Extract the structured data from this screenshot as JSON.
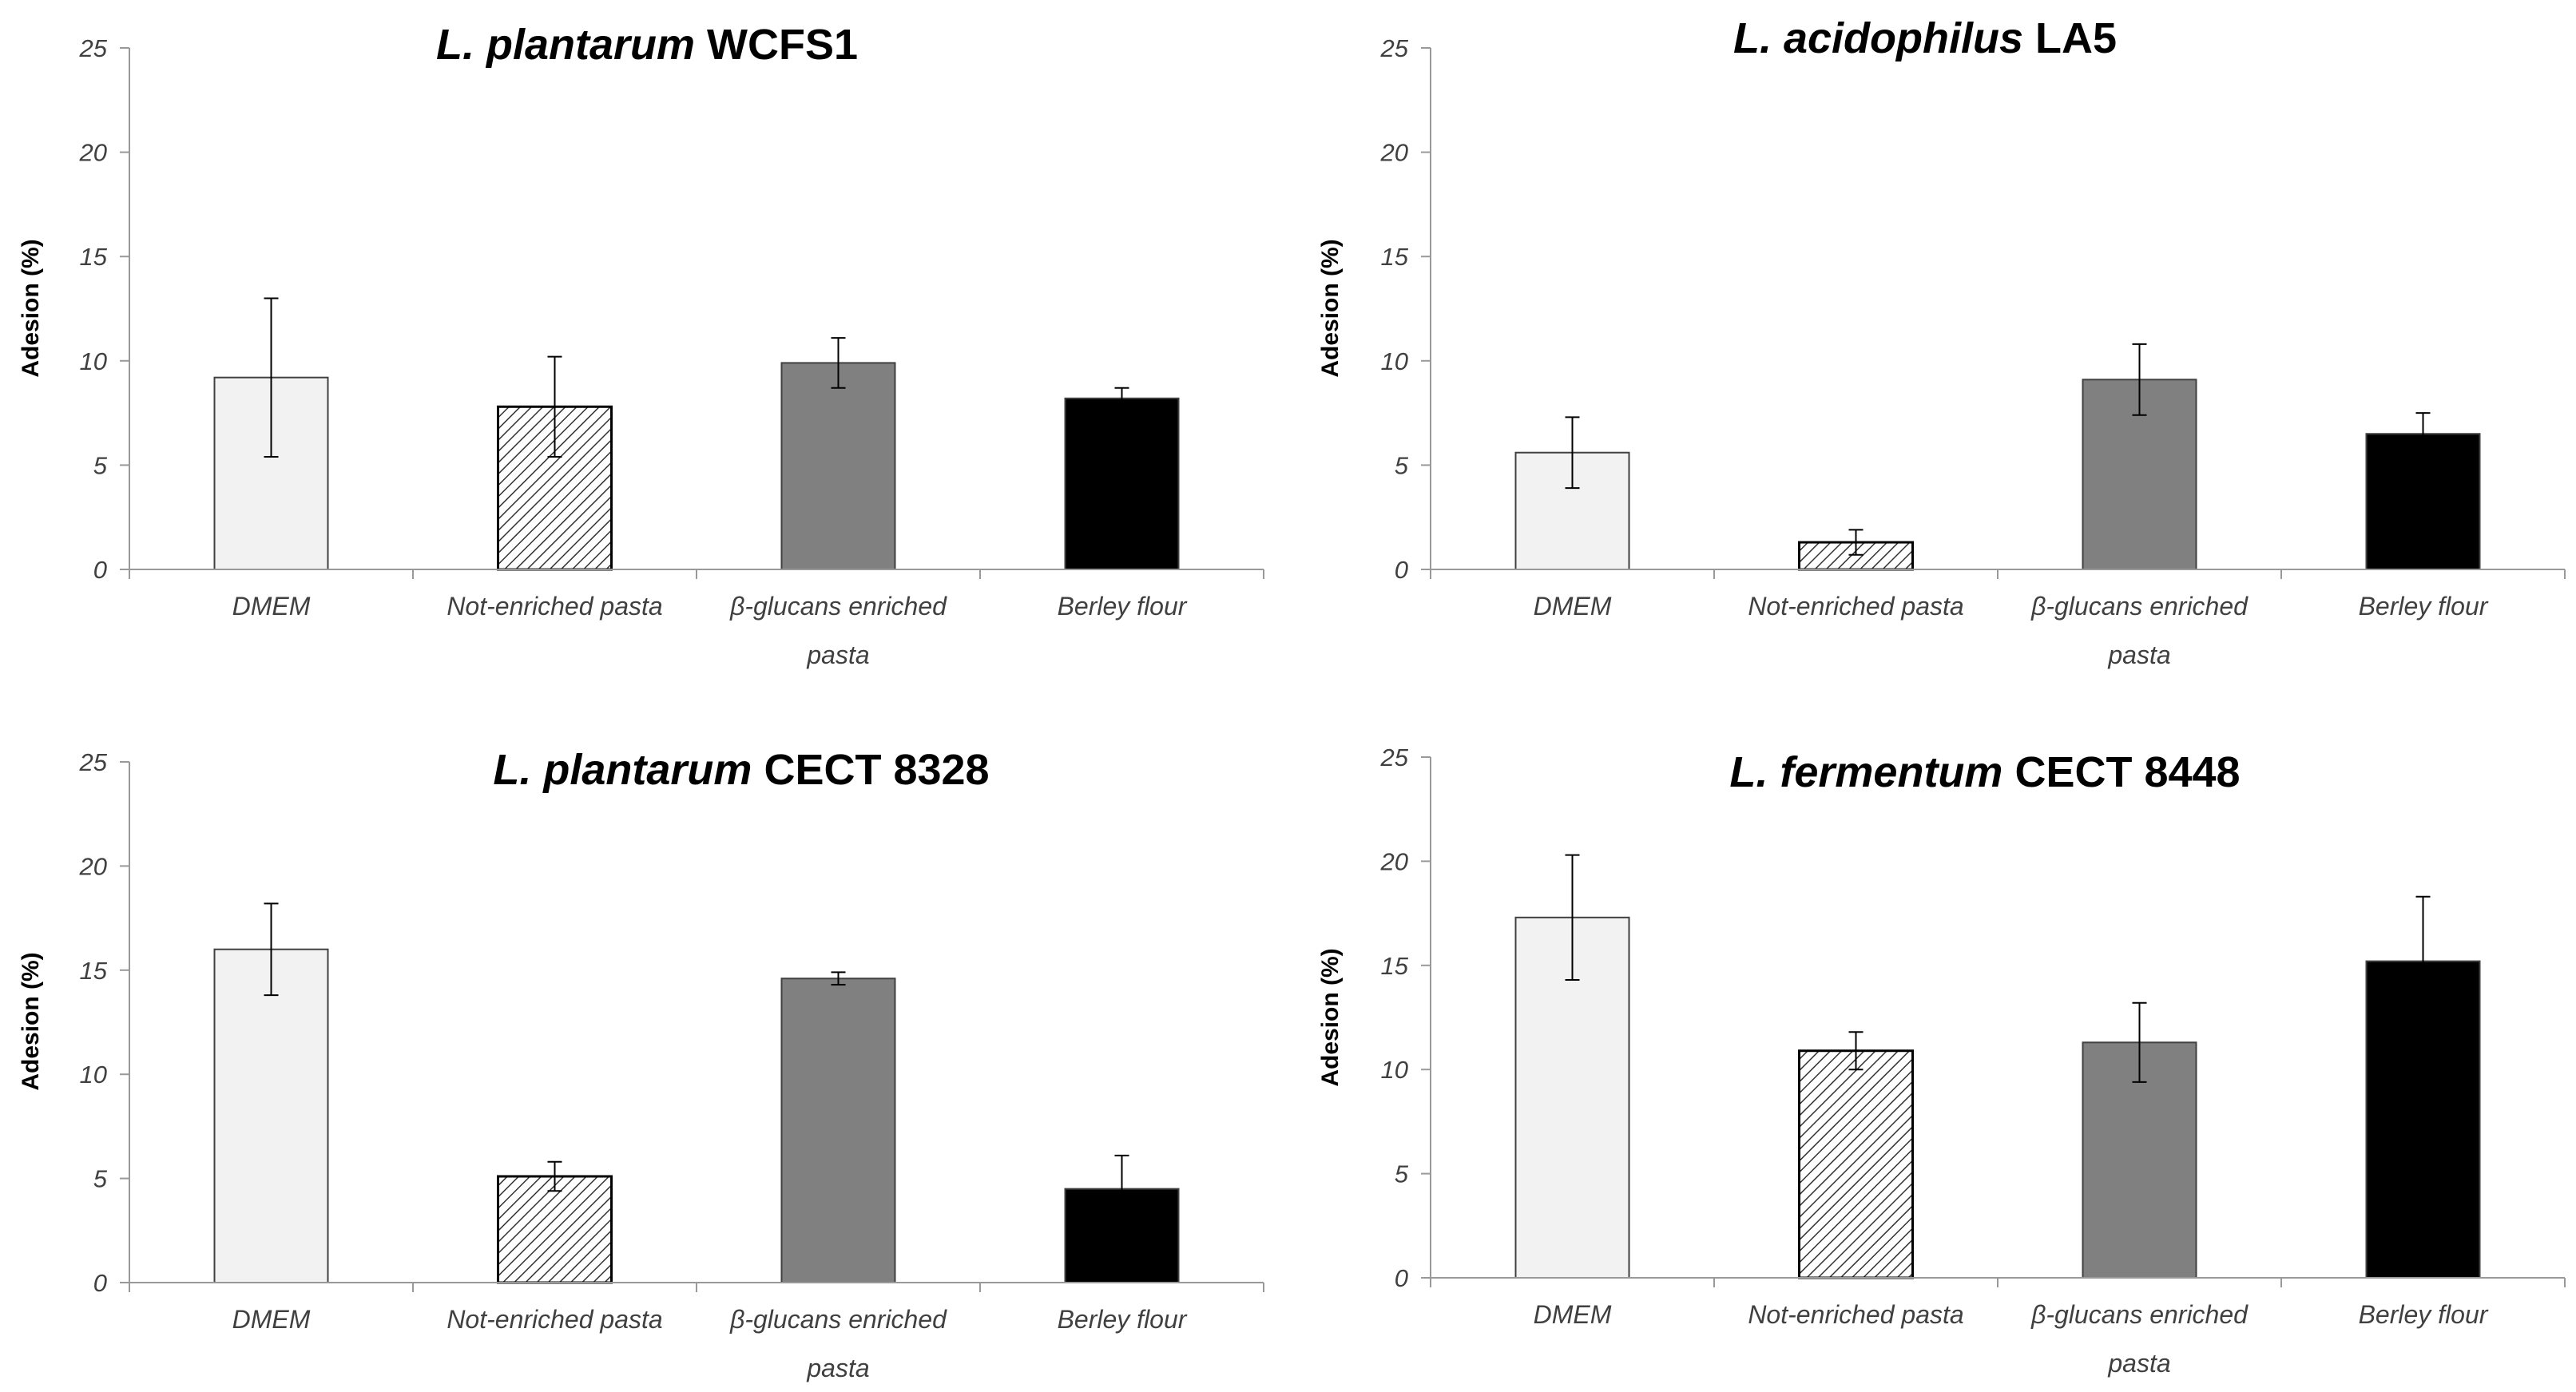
{
  "figure": {
    "ylabel": "Adesion (%)",
    "categories": [
      "DMEM",
      "Not-enriched pasta",
      "β-glucans enriched pasta",
      "Berley flour"
    ],
    "category_lines": [
      [
        "DMEM"
      ],
      [
        "Not-enriched pasta"
      ],
      [
        "β-glucans enriched",
        "pasta"
      ],
      [
        "Berley flour"
      ]
    ],
    "yticks": [
      "0",
      "5",
      "10",
      "15",
      "20",
      "25"
    ],
    "bar_styles": [
      {
        "name": "DMEM",
        "fill": "#f2f2f2",
        "pattern": "none"
      },
      {
        "name": "Not-enriched pasta",
        "fill": "#ffffff",
        "pattern": "diagonal-hatch"
      },
      {
        "name": "β-glucans enriched pasta",
        "fill": "#808080",
        "pattern": "none"
      },
      {
        "name": "Berley flour",
        "fill": "#000000",
        "pattern": "none"
      }
    ]
  },
  "chart_data": [
    {
      "type": "bar",
      "title_italic": "L. plantarum",
      "title_plain": "WCFS1",
      "categories": [
        "DMEM",
        "Not-enriched pasta",
        "β-glucans enriched pasta",
        "Berley flour"
      ],
      "values": [
        9.2,
        7.8,
        9.9,
        8.2
      ],
      "errors": [
        3.8,
        2.4,
        1.2,
        0.5
      ],
      "ylabel": "Adesion (%)",
      "ylim": [
        0,
        25
      ]
    },
    {
      "type": "bar",
      "title_italic": "L. acidophilus",
      "title_plain": "LA5",
      "categories": [
        "DMEM",
        "Not-enriched pasta",
        "β-glucans enriched pasta",
        "Berley flour"
      ],
      "values": [
        5.6,
        1.3,
        9.1,
        6.5
      ],
      "errors": [
        1.7,
        0.6,
        1.7,
        1.0
      ],
      "ylabel": "Adesion (%)",
      "ylim": [
        0,
        25
      ]
    },
    {
      "type": "bar",
      "title_italic": "L. plantarum",
      "title_plain": "CECT 8328",
      "categories": [
        "DMEM",
        "Not-enriched pasta",
        "β-glucans enriched pasta",
        "Berley flour"
      ],
      "values": [
        16.0,
        5.1,
        14.6,
        4.5
      ],
      "errors": [
        2.2,
        0.7,
        0.3,
        1.6
      ],
      "ylabel": "Adesion (%)",
      "ylim": [
        0,
        25
      ]
    },
    {
      "type": "bar",
      "title_italic": "L. fermentum",
      "title_plain": "CECT 8448",
      "categories": [
        "DMEM",
        "Not-enriched pasta",
        "β-glucans enriched pasta",
        "Berley flour"
      ],
      "values": [
        17.3,
        10.9,
        11.3,
        15.2
      ],
      "errors": [
        3.0,
        0.9,
        1.9,
        3.1
      ],
      "ylabel": "Adesion (%)",
      "ylim": [
        0,
        25
      ]
    }
  ]
}
